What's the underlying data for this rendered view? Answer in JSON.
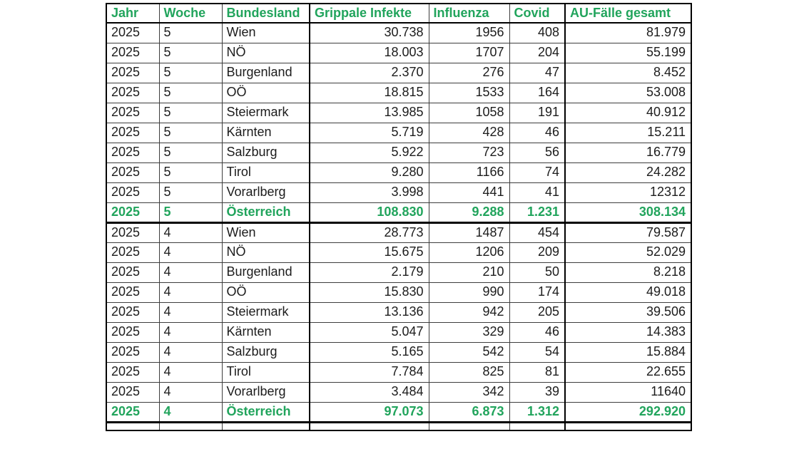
{
  "colors": {
    "accent_green": "#21a45c"
  },
  "table": {
    "columns": [
      "Jahr",
      "Woche",
      "Bundesland",
      "Grippale Infekte",
      "Influenza",
      "Covid",
      "AU-Fälle gesamt"
    ],
    "rows": [
      {
        "cells": [
          "2025",
          "5",
          "Wien",
          "30.738",
          "1956",
          "408",
          "81.979"
        ],
        "highlight": false
      },
      {
        "cells": [
          "2025",
          "5",
          "NÖ",
          "18.003",
          "1707",
          "204",
          "55.199"
        ],
        "highlight": false
      },
      {
        "cells": [
          "2025",
          "5",
          "Burgenland",
          "2.370",
          "276",
          "47",
          "8.452"
        ],
        "highlight": false
      },
      {
        "cells": [
          "2025",
          "5",
          "OÖ",
          "18.815",
          "1533",
          "164",
          "53.008"
        ],
        "highlight": false
      },
      {
        "cells": [
          "2025",
          "5",
          "Steiermark",
          "13.985",
          "1058",
          "191",
          "40.912"
        ],
        "highlight": false
      },
      {
        "cells": [
          "2025",
          "5",
          "Kärnten",
          "5.719",
          "428",
          "46",
          "15.211"
        ],
        "highlight": false
      },
      {
        "cells": [
          "2025",
          "5",
          "Salzburg",
          "5.922",
          "723",
          "56",
          "16.779"
        ],
        "highlight": false
      },
      {
        "cells": [
          "2025",
          "5",
          "Tirol",
          "9.280",
          "1166",
          "74",
          "24.282"
        ],
        "highlight": false
      },
      {
        "cells": [
          "2025",
          "5",
          "Vorarlberg",
          "3.998",
          "441",
          "41",
          "12312"
        ],
        "highlight": false
      },
      {
        "cells": [
          "2025",
          "5",
          "Österreich",
          "108.830",
          "9.288",
          "1.231",
          "308.134"
        ],
        "highlight": true
      },
      {
        "cells": [
          "2025",
          "4",
          "Wien",
          "28.773",
          "1487",
          "454",
          "79.587"
        ],
        "highlight": false
      },
      {
        "cells": [
          "2025",
          "4",
          "NÖ",
          "15.675",
          "1206",
          "209",
          "52.029"
        ],
        "highlight": false
      },
      {
        "cells": [
          "2025",
          "4",
          "Burgenland",
          "2.179",
          "210",
          "50",
          "8.218"
        ],
        "highlight": false
      },
      {
        "cells": [
          "2025",
          "4",
          "OÖ",
          "15.830",
          "990",
          "174",
          "49.018"
        ],
        "highlight": false
      },
      {
        "cells": [
          "2025",
          "4",
          "Steiermark",
          "13.136",
          "942",
          "205",
          "39.506"
        ],
        "highlight": false
      },
      {
        "cells": [
          "2025",
          "4",
          "Kärnten",
          "5.047",
          "329",
          "46",
          "14.383"
        ],
        "highlight": false
      },
      {
        "cells": [
          "2025",
          "4",
          "Salzburg",
          "5.165",
          "542",
          "54",
          "15.884"
        ],
        "highlight": false
      },
      {
        "cells": [
          "2025",
          "4",
          "Tirol",
          "7.784",
          "825",
          "81",
          "22.655"
        ],
        "highlight": false
      },
      {
        "cells": [
          "2025",
          "4",
          "Vorarlberg",
          "3.484",
          "342",
          "39",
          "11640"
        ],
        "highlight": false
      },
      {
        "cells": [
          "2025",
          "4",
          "Österreich",
          "97.073",
          "6.873",
          "1.312",
          "292.920"
        ],
        "highlight": true
      }
    ]
  }
}
